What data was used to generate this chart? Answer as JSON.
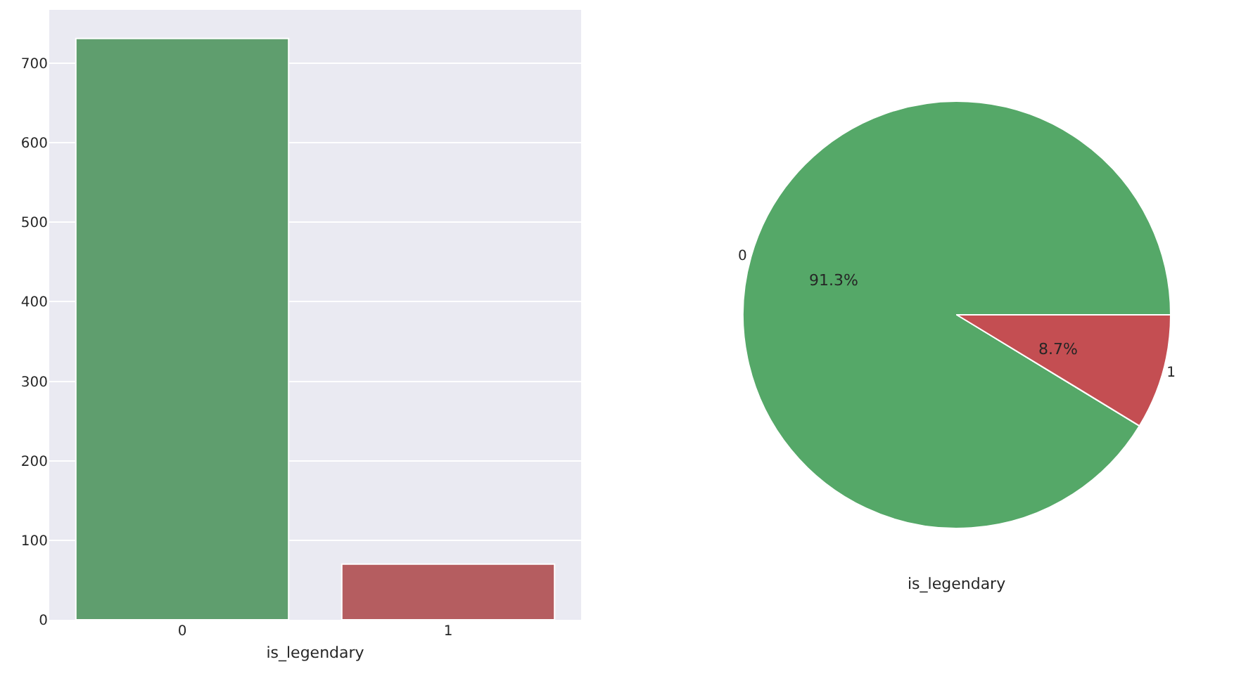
{
  "chart_data": [
    {
      "type": "bar",
      "categories": [
        "0",
        "1"
      ],
      "values": [
        731,
        70
      ],
      "colors": [
        "#5f9e6e",
        "#b55d60"
      ],
      "xlabel": "is_legendary",
      "ylim": [
        0,
        767
      ],
      "yticks": [
        0,
        100,
        200,
        300,
        400,
        500,
        600,
        700
      ],
      "grid": "y"
    },
    {
      "type": "pie",
      "categories": [
        "0",
        "1"
      ],
      "values": [
        91.3,
        8.7
      ],
      "colors": [
        "#55a868",
        "#c44e52"
      ],
      "value_labels": [
        "91.3%",
        "8.7%"
      ],
      "xlabel": "is_legendary"
    }
  ]
}
